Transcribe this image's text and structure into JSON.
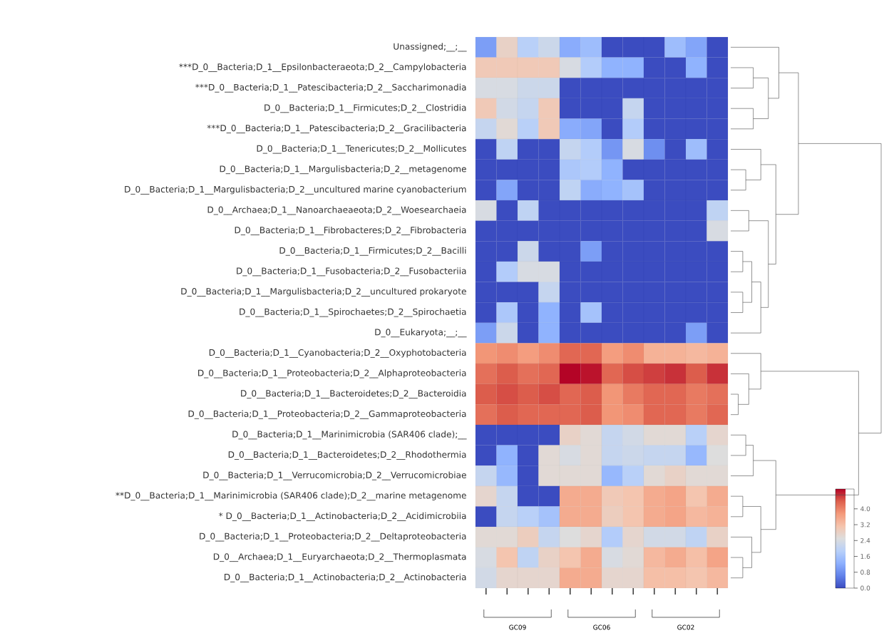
{
  "chart_data": {
    "type": "heatmap",
    "categories": [
      null,
      null,
      null,
      null,
      null,
      null,
      null,
      null,
      null,
      null,
      null,
      null
    ],
    "y_categories": [
      "Unassigned;__;__",
      "***D_0__Bacteria;D_1__Epsilonbacteraeota;D_2__Campylobacteria",
      "***D_0__Bacteria;D_1__Patescibacteria;D_2__Saccharimonadia",
      "D_0__Bacteria;D_1__Firmicutes;D_2__Clostridia",
      "***D_0__Bacteria;D_1__Patescibacteria;D_2__Gracilibacteria",
      "D_0__Bacteria;D_1__Tenericutes;D_2__Mollicutes",
      "D_0__Bacteria;D_1__Margulisbacteria;D_2__metagenome",
      "D_0__Bacteria;D_1__Margulisbacteria;D_2__uncultured marine cyanobacterium",
      "D_0__Archaea;D_1__Nanoarchaeaeota;D_2__Woesearchaeia",
      "D_0__Bacteria;D_1__Fibrobacteres;D_2__Fibrobacteria",
      "D_0__Bacteria;D_1__Firmicutes;D_2__Bacilli",
      "D_0__Bacteria;D_1__Fusobacteria;D_2__Fusobacteriia",
      "D_0__Bacteria;D_1__Margulisbacteria;D_2__uncultured prokaryote",
      "D_0__Bacteria;D_1__Spirochaetes;D_2__Spirochaetia",
      "D_0__Eukaryota;__;__",
      "D_0__Bacteria;D_1__Cyanobacteria;D_2__Oxyphotobacteria",
      "D_0__Bacteria;D_1__Proteobacteria;D_2__Alphaproteobacteria",
      "D_0__Bacteria;D_1__Bacteroidetes;D_2__Bacteroidia",
      "D_0__Bacteria;D_1__Proteobacteria;D_2__Gammaproteobacteria",
      "D_0__Bacteria;D_1__Marinimicrobia (SAR406 clade);__",
      "D_0__Bacteria;D_1__Bacteroidetes;D_2__Rhodothermia",
      "D_0__Bacteria;D_1__Verrucomicrobia;D_2__Verrucomicrobiae",
      "**D_0__Bacteria;D_1__Marinimicrobia (SAR406 clade);D_2__marine metagenome",
      "* D_0__Bacteria;D_1__Actinobacteria;D_2__Acidimicrobiia",
      "D_0__Bacteria;D_1__Proteobacteria;D_2__Deltaproteobacteria",
      "D_0__Archaea;D_1__Euryarchaeota;D_2__Thermoplasmata",
      "D_0__Bacteria;D_1__Actinobacteria;D_2__Actinobacteria"
    ],
    "cells": [
      [
        1.0,
        2.8,
        1.9,
        2.2,
        1.2,
        1.5,
        0,
        0,
        0,
        1.5,
        1.1,
        0
      ],
      [
        3.0,
        3.0,
        3.0,
        3.0,
        2.4,
        1.8,
        1.3,
        1.3,
        0,
        0,
        1.3,
        0
      ],
      [
        2.4,
        2.4,
        2.2,
        2.2,
        0,
        0,
        0,
        0,
        0,
        0,
        0,
        0
      ],
      [
        3.0,
        2.3,
        2.1,
        3.0,
        0,
        0,
        0,
        2.1,
        0,
        0,
        0,
        0
      ],
      [
        2.1,
        2.6,
        1.9,
        3.0,
        1.2,
        1.1,
        0,
        1.8,
        0,
        0,
        0,
        0
      ],
      [
        0,
        2.0,
        0,
        0,
        2.1,
        1.8,
        0.9,
        2.4,
        0.8,
        0,
        1.5,
        0
      ],
      [
        0,
        0,
        0,
        0,
        1.7,
        1.8,
        1.3,
        0,
        0,
        0,
        0,
        0
      ],
      [
        0,
        1.1,
        0,
        0,
        2.0,
        1.2,
        1.3,
        1.6,
        0,
        0,
        0,
        0
      ],
      [
        2.4,
        0,
        2.0,
        0,
        0,
        0,
        0,
        0,
        0,
        0,
        0,
        2.0
      ],
      [
        0,
        0,
        0,
        0,
        0,
        0,
        0,
        0,
        0,
        0,
        0,
        2.4
      ],
      [
        0,
        0,
        2.2,
        0,
        0,
        1.0,
        0,
        0,
        0,
        0,
        0,
        0
      ],
      [
        0,
        1.8,
        2.4,
        2.4,
        0,
        0,
        0,
        0,
        0,
        0,
        0,
        0
      ],
      [
        0,
        0,
        0,
        2.1,
        0,
        0,
        0,
        0,
        0,
        0,
        0,
        0
      ],
      [
        0,
        1.7,
        0,
        1.3,
        0,
        1.6,
        0,
        0,
        0,
        0,
        0,
        0
      ],
      [
        1.0,
        2.2,
        0,
        1.3,
        0,
        0,
        0,
        0,
        0,
        0,
        1.0,
        0
      ],
      [
        3.8,
        3.9,
        3.7,
        3.9,
        4.3,
        4.3,
        3.7,
        3.9,
        3.4,
        3.4,
        3.3,
        3.4
      ],
      [
        4.2,
        4.4,
        4.2,
        4.3,
        5.0,
        4.9,
        4.3,
        4.5,
        4.6,
        4.7,
        4.4,
        4.7
      ],
      [
        4.4,
        4.5,
        4.4,
        4.5,
        4.3,
        4.4,
        3.8,
        4.1,
        4.3,
        4.3,
        4.1,
        4.2
      ],
      [
        4.2,
        4.4,
        4.3,
        4.3,
        4.3,
        4.4,
        3.8,
        3.9,
        4.3,
        4.3,
        4.1,
        4.3
      ],
      [
        0,
        0,
        0,
        0,
        2.8,
        2.6,
        2.1,
        2.3,
        2.6,
        2.6,
        1.9,
        2.7
      ],
      [
        0,
        1.3,
        0,
        2.6,
        2.4,
        2.6,
        2.1,
        2.2,
        2.1,
        2.1,
        1.4,
        2.5
      ],
      [
        2.1,
        1.4,
        0,
        2.6,
        2.6,
        2.6,
        1.4,
        1.9,
        2.6,
        2.8,
        2.6,
        2.6
      ],
      [
        2.7,
        2.1,
        0,
        0,
        3.5,
        3.5,
        3.0,
        3.1,
        3.5,
        3.6,
        3.1,
        3.5
      ],
      [
        0,
        2.1,
        1.9,
        1.6,
        3.5,
        3.5,
        2.9,
        3.1,
        3.5,
        3.6,
        3.3,
        3.4
      ],
      [
        2.6,
        2.6,
        2.9,
        2.1,
        2.5,
        2.7,
        1.8,
        2.7,
        2.3,
        2.3,
        2.0,
        2.8
      ],
      [
        2.4,
        3.1,
        2.0,
        2.8,
        3.1,
        3.5,
        2.4,
        2.6,
        3.3,
        3.5,
        3.2,
        3.6
      ],
      [
        2.3,
        2.7,
        2.7,
        2.7,
        3.5,
        3.5,
        2.7,
        2.7,
        3.2,
        3.2,
        3.1,
        3.3
      ]
    ],
    "clim": [
      0,
      5
    ],
    "cticks": [
      {
        "value": 0,
        "label": "0.0"
      },
      {
        "value": 0.8,
        "label": "0.8"
      },
      {
        "value": 1.6,
        "label": "1.6"
      },
      {
        "value": 2.4,
        "label": "2.4"
      },
      {
        "value": 3.2,
        "label": "3.2"
      },
      {
        "value": 4.0,
        "label": "4.0"
      }
    ],
    "annotations": [
      "GC09",
      "GC06",
      "GC02"
    ]
  }
}
